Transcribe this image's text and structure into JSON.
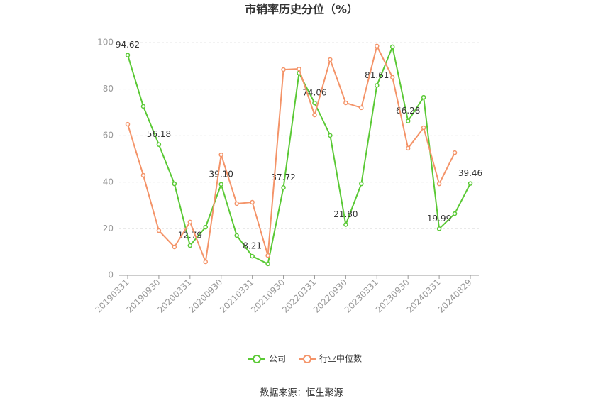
{
  "chart_data": {
    "type": "line",
    "title": "市销率历史分位（%）",
    "source": "数据来源：恒生聚源",
    "categories": [
      "20190331",
      null,
      "20190930",
      null,
      "20200331",
      null,
      "20200930",
      null,
      "20210331",
      null,
      "20210930",
      null,
      "20220331",
      null,
      "20220930",
      null,
      "20230331",
      null,
      "20230930",
      null,
      "20240331",
      null,
      "20240829"
    ],
    "series": [
      {
        "name": "公司",
        "color": "#5ac935",
        "values": [
          94.62,
          72.6,
          56.18,
          39.3,
          12.79,
          20.7,
          39.1,
          17.1,
          8.21,
          4.9,
          37.72,
          86.9,
          74.06,
          60.1,
          21.8,
          39.3,
          81.61,
          98.2,
          66.28,
          76.5,
          19.99,
          26.5,
          39.46
        ],
        "value_labels": [
          "94.62",
          null,
          "56.18",
          null,
          "12.79",
          null,
          "39.10",
          null,
          "8.21",
          null,
          "37.72",
          null,
          "74.06",
          null,
          "21.80",
          null,
          "81.61",
          null,
          "66.28",
          null,
          "19.99",
          null,
          "39.46"
        ]
      },
      {
        "name": "行业中位数",
        "color": "#f49469",
        "values": [
          64.9,
          43.0,
          19.2,
          12.2,
          22.9,
          5.8,
          51.8,
          30.8,
          31.4,
          8.5,
          88.4,
          88.7,
          68.9,
          92.7,
          74.1,
          72.0,
          98.5,
          85.1,
          54.6,
          63.4,
          39.3,
          52.7,
          null
        ]
      }
    ],
    "ylim": [
      0,
      100
    ],
    "yticks": [
      0,
      20,
      40,
      60,
      80,
      100
    ],
    "grid": true
  }
}
